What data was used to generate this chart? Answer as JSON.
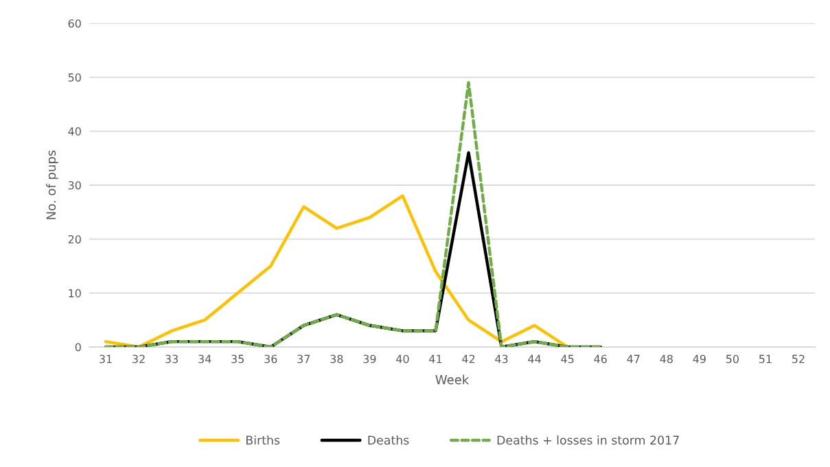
{
  "chart_data": {
    "type": "line",
    "xlabel": "Week",
    "ylabel": "No. of pups",
    "categories": [
      "31",
      "32",
      "33",
      "34",
      "35",
      "36",
      "37",
      "38",
      "39",
      "40",
      "41",
      "42",
      "43",
      "44",
      "45",
      "46",
      "47",
      "48",
      "49",
      "50",
      "51",
      "52"
    ],
    "series": [
      {
        "name": "Births",
        "color": "#ffc000",
        "values": [
          1,
          0,
          3,
          5,
          10,
          15,
          26,
          22,
          24,
          28,
          14,
          5,
          1,
          4,
          0,
          null,
          null,
          null,
          null,
          null,
          null,
          null
        ]
      },
      {
        "name": "Deaths",
        "color": "#000000",
        "values": [
          0,
          0,
          1,
          1,
          1,
          0,
          4,
          6,
          4,
          3,
          3,
          36,
          0,
          1,
          0,
          0,
          null,
          null,
          null,
          null,
          null,
          null
        ]
      },
      {
        "name": "Deaths + losses in storm 2017",
        "color": "#70ad47",
        "line_style": "dashed",
        "values": [
          0,
          0,
          1,
          1,
          1,
          0,
          4,
          6,
          4,
          3,
          3,
          49,
          0,
          1,
          0,
          0,
          null,
          null,
          null,
          null,
          null,
          null
        ]
      }
    ],
    "ylim": [
      0,
      60
    ],
    "yticks": [
      0,
      10,
      20,
      30,
      40,
      50,
      60
    ],
    "grid": "y",
    "legend": "bottom",
    "line_style": "solid"
  }
}
